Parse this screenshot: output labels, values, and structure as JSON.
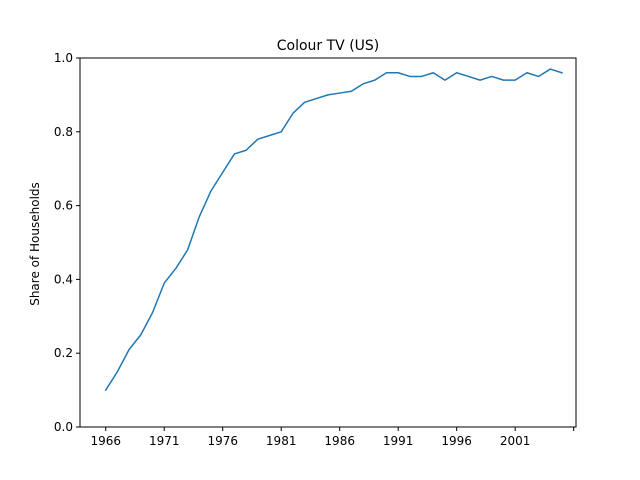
{
  "chart_data": {
    "type": "line",
    "title": "Colour TV (US)",
    "xlabel": "",
    "ylabel": "Share of Households",
    "xlim": [
      1963.8,
      2006.2
    ],
    "ylim": [
      0.0,
      1.0
    ],
    "x_ticks": [
      "1966",
      "1971",
      "1976",
      "1981",
      "1986",
      "1991",
      "1996",
      "2001",
      ""
    ],
    "y_ticks": [
      "0.0",
      "0.2",
      "0.4",
      "0.6",
      "0.8",
      "1.0"
    ],
    "grid": false,
    "color": "#1f77b4",
    "series": [
      {
        "x": [
          1966,
          1967,
          1968,
          1969,
          1970,
          1971,
          1972,
          1973,
          1974,
          1975,
          1976,
          1977,
          1978,
          1979,
          1980,
          1981,
          1982,
          1983,
          1984,
          1985,
          1986,
          1987,
          1988,
          1989,
          1990,
          1991,
          1992,
          1993,
          1994,
          1995,
          1996,
          1997,
          1998,
          1999,
          2000,
          2001,
          2002,
          2003,
          2004,
          2005
        ],
        "values": [
          0.1,
          0.15,
          0.21,
          0.25,
          0.31,
          0.39,
          0.43,
          0.48,
          0.57,
          0.64,
          0.69,
          0.74,
          0.75,
          0.78,
          0.79,
          0.8,
          0.85,
          0.88,
          0.89,
          0.9,
          0.905,
          0.91,
          0.93,
          0.94,
          0.96,
          0.96,
          0.95,
          0.95,
          0.96,
          0.94,
          0.96,
          0.95,
          0.94,
          0.95,
          0.94,
          0.94,
          0.96,
          0.95,
          0.97,
          0.96
        ]
      }
    ]
  }
}
